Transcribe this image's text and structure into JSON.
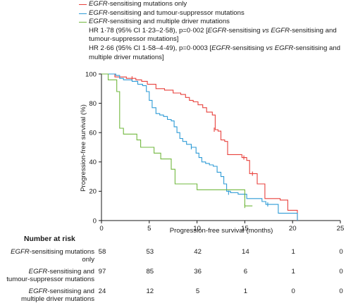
{
  "chart_data": {
    "type": "line",
    "subtype": "kaplan-meier",
    "xlabel": "Progression-free survival (months)",
    "ylabel": "Progression-free survival (%)",
    "xlim": [
      0,
      25
    ],
    "ylim": [
      0,
      100
    ],
    "xticks": [
      0,
      5,
      10,
      15,
      20,
      25
    ],
    "yticks": [
      0,
      20,
      40,
      60,
      80,
      100
    ],
    "grid": false,
    "legend_position": "top",
    "series": [
      {
        "name_italic": "EGFR",
        "name_rest": "-sensitising mutations only",
        "color": "#e8413c",
        "points": [
          [
            0,
            100
          ],
          [
            1.2,
            100
          ],
          [
            1.4,
            98
          ],
          [
            2.3,
            98
          ],
          [
            2.6,
            97
          ],
          [
            3.6,
            96
          ],
          [
            4.2,
            95
          ],
          [
            4.8,
            93
          ],
          [
            5.7,
            90
          ],
          [
            6.6,
            89
          ],
          [
            7.5,
            87
          ],
          [
            8.3,
            86
          ],
          [
            8.8,
            84
          ],
          [
            9.2,
            82
          ],
          [
            9.6,
            81
          ],
          [
            10.1,
            79
          ],
          [
            10.6,
            77
          ],
          [
            11.0,
            74
          ],
          [
            11.6,
            72
          ],
          [
            11.9,
            62
          ],
          [
            12.2,
            61
          ],
          [
            12.5,
            55
          ],
          [
            12.9,
            54
          ],
          [
            13.2,
            45
          ],
          [
            14.7,
            43
          ],
          [
            15.2,
            41
          ],
          [
            15.5,
            32
          ],
          [
            16.3,
            25
          ],
          [
            17.1,
            15
          ],
          [
            18.7,
            14
          ],
          [
            19.5,
            7
          ],
          [
            20.5,
            7
          ],
          [
            20.5,
            0
          ]
        ],
        "censor": [
          [
            3.2,
            97
          ],
          [
            11.8,
            62
          ],
          [
            14.9,
            43
          ],
          [
            15.8,
            32
          ]
        ]
      },
      {
        "name_italic": "EGFR",
        "name_rest": "-sensitising and tumour-suppressor mutations",
        "color": "#2e9bd6",
        "points": [
          [
            0,
            100
          ],
          [
            1.2,
            100
          ],
          [
            1.5,
            99
          ],
          [
            1.9,
            97
          ],
          [
            2.3,
            96
          ],
          [
            3.2,
            95
          ],
          [
            3.8,
            93
          ],
          [
            4.3,
            92
          ],
          [
            4.7,
            88
          ],
          [
            5.0,
            82
          ],
          [
            5.3,
            77
          ],
          [
            5.7,
            73
          ],
          [
            6.1,
            72
          ],
          [
            6.5,
            71
          ],
          [
            6.9,
            69
          ],
          [
            7.3,
            68
          ],
          [
            7.6,
            64
          ],
          [
            7.9,
            60
          ],
          [
            8.2,
            56
          ],
          [
            8.5,
            54
          ],
          [
            8.9,
            52
          ],
          [
            9.4,
            50
          ],
          [
            9.9,
            46
          ],
          [
            10.2,
            43
          ],
          [
            10.5,
            40
          ],
          [
            10.9,
            39
          ],
          [
            11.3,
            38
          ],
          [
            11.7,
            37
          ],
          [
            12.1,
            33
          ],
          [
            12.5,
            30
          ],
          [
            12.8,
            25
          ],
          [
            13.1,
            20
          ],
          [
            13.5,
            19
          ],
          [
            14.3,
            18
          ],
          [
            15.2,
            15
          ],
          [
            16.8,
            13
          ],
          [
            17.2,
            11
          ],
          [
            18.5,
            11
          ],
          [
            18.5,
            5
          ],
          [
            20.5,
            5
          ],
          [
            20.5,
            0
          ]
        ],
        "censor": [
          [
            9.4,
            50
          ],
          [
            13.3,
            19
          ],
          [
            15.0,
            17
          ],
          [
            17.4,
            11
          ]
        ]
      },
      {
        "name_italic": "EGFR",
        "name_rest": "-sensitising and multiple driver mutations",
        "color": "#72b83f",
        "points": [
          [
            0,
            100
          ],
          [
            0.6,
            100
          ],
          [
            0.7,
            96
          ],
          [
            1.3,
            96
          ],
          [
            1.6,
            88
          ],
          [
            1.9,
            63
          ],
          [
            2.3,
            59
          ],
          [
            3.7,
            55
          ],
          [
            4.1,
            50
          ],
          [
            5.5,
            46
          ],
          [
            6.2,
            42
          ],
          [
            7.0,
            42
          ],
          [
            7.3,
            35
          ],
          [
            7.7,
            25
          ],
          [
            9.6,
            25
          ],
          [
            10.0,
            21
          ],
          [
            15.0,
            21
          ],
          [
            15.0,
            10
          ],
          [
            15.8,
            10
          ]
        ],
        "censor": [
          [
            15.0,
            10
          ]
        ]
      }
    ]
  },
  "legend": {
    "hr1_prefix": "HR 1·78 (95% CI 1·23–2·58), p=0·002 [",
    "hr1_italic_a": "EGFR",
    "hr1_mid_a": "-sensitising ",
    "hr1_italic_vs": "vs",
    "hr1_space": " ",
    "hr1_italic_b": "EGFR",
    "hr1_mid_b": "-sensitising and tumour-suppressor mutations]",
    "hr2_prefix": "HR 2·66 (95% CI 1·58–4·49), p=0·0003 [",
    "hr2_italic_a": "EGFR",
    "hr2_mid_a": "-sensitising ",
    "hr2_italic_vs": "vs",
    "hr2_space": " ",
    "hr2_italic_b": "EGFR",
    "hr2_mid_b": "-sensitising and multiple driver mutations]"
  },
  "risk_table": {
    "title": "Number at risk",
    "rows": [
      {
        "label_italic": "EGFR",
        "label_line1": "-sensitising mutations",
        "label_line2": "only",
        "values": [
          "58",
          "53",
          "42",
          "14",
          "1",
          "0"
        ]
      },
      {
        "label_italic": "EGFR",
        "label_line1": "-sensitising and",
        "label_line2": "tumour-suppressor mutations",
        "values": [
          "97",
          "85",
          "36",
          "6",
          "1",
          "0"
        ]
      },
      {
        "label_italic": "EGFR",
        "label_line1": "-sensitising and",
        "label_line2": "multiple driver mutations",
        "values": [
          "24",
          "12",
          "5",
          "1",
          "0",
          "0"
        ]
      }
    ]
  }
}
